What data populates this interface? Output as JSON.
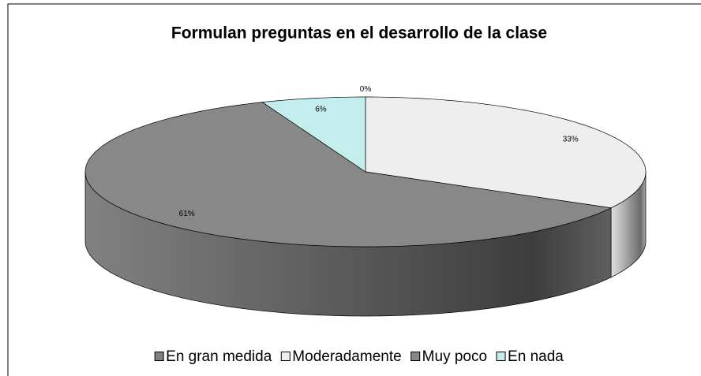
{
  "chart_data": {
    "type": "pie3d",
    "title": "Formulan preguntas en el desarrollo de la clase",
    "categories": [
      "En gran medida",
      "Moderadamente",
      "Muy poco",
      "En nada"
    ],
    "values": [
      0,
      33,
      61,
      6
    ],
    "value_labels": [
      "0%",
      "33%",
      "61%",
      "6%"
    ],
    "colors": [
      "#808080",
      "#eeeeee",
      "#888888",
      "#c4eeee"
    ],
    "legend": "bottom"
  }
}
